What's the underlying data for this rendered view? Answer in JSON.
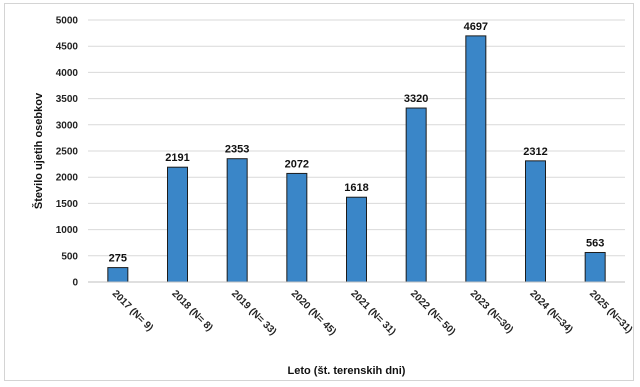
{
  "chart_data": {
    "type": "bar",
    "title": "",
    "xlabel": "Leto (št. terenskih dni)",
    "ylabel": "Število ujetih osebkov",
    "categories": [
      "2017 (N= 9)",
      "2018 (N= 8)",
      "2019 (N= 33)",
      "2020 (N= 45)",
      "2021 (N= 31)",
      "2022 (N= 50)",
      "2023 (N=30)",
      "2024 (N=34)",
      "2025 (N=31)"
    ],
    "values": [
      275,
      2191,
      2353,
      2072,
      1618,
      3320,
      4697,
      2312,
      563
    ],
    "data_labels": [
      "275",
      "2191",
      "2353",
      "2072",
      "1618",
      "3320",
      "4697",
      "2312",
      "563"
    ],
    "y_ticks": [
      "0",
      "500",
      "1000",
      "1500",
      "2000",
      "2500",
      "3000",
      "3500",
      "4000",
      "4500",
      "5000"
    ],
    "ylim": [
      0,
      5000
    ],
    "grid": true,
    "legend": "none",
    "colors": {
      "bar": "#3a86c8",
      "bar_edge": "#1c1c1c",
      "grid": "#d9d9d9"
    }
  }
}
